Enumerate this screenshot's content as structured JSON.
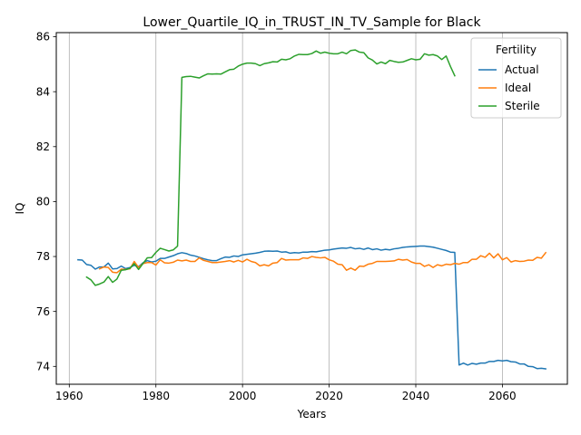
{
  "chart_data": {
    "type": "line",
    "title": "Lower_Quartile_IQ_in_TRUST_IN_TV_Sample for Black",
    "xlabel": "Years",
    "ylabel": "IQ",
    "xlim": [
      1957,
      2075
    ],
    "ylim": [
      73.35,
      86.15
    ],
    "xticks": [
      1960,
      1980,
      2000,
      2020,
      2040,
      2060
    ],
    "yticks": [
      74,
      76,
      78,
      80,
      82,
      84,
      86
    ],
    "grid": "vertical",
    "legend": {
      "title": "Fertility",
      "position": "top-right"
    },
    "series": [
      {
        "name": "Actual",
        "color": "#1f77b4",
        "x": [
          1962,
          1963,
          1964,
          1965,
          1966,
          1967,
          1968,
          1969,
          1970,
          1971,
          1972,
          1973,
          1974,
          1975,
          1976,
          1977,
          1978,
          1979,
          1980,
          1981,
          1982,
          1983,
          1984,
          1985,
          1986,
          1987,
          1988,
          1989,
          1990,
          1991,
          1992,
          1993,
          1994,
          1995,
          1996,
          1997,
          1998,
          1999,
          2000,
          2001,
          2002,
          2003,
          2004,
          2005,
          2006,
          2007,
          2008,
          2009,
          2010,
          2011,
          2012,
          2013,
          2014,
          2015,
          2016,
          2017,
          2018,
          2019,
          2020,
          2021,
          2022,
          2023,
          2024,
          2025,
          2026,
          2027,
          2028,
          2029,
          2030,
          2031,
          2032,
          2033,
          2034,
          2035,
          2036,
          2037,
          2038,
          2039,
          2040,
          2041,
          2042,
          2043,
          2044,
          2045,
          2046,
          2047,
          2048,
          2049,
          2050,
          2051,
          2052,
          2053,
          2054,
          2055,
          2056,
          2057,
          2058,
          2059,
          2060,
          2061,
          2062,
          2063,
          2064,
          2065,
          2066,
          2067,
          2068,
          2069,
          2070
        ],
        "y": [
          77.88,
          77.87,
          77.71,
          77.68,
          77.54,
          77.62,
          77.62,
          77.76,
          77.55,
          77.56,
          77.65,
          77.56,
          77.6,
          77.68,
          77.63,
          77.77,
          77.85,
          77.8,
          77.83,
          77.93,
          77.93,
          77.98,
          78.03,
          78.1,
          78.14,
          78.11,
          78.05,
          78.02,
          77.97,
          77.92,
          77.88,
          77.85,
          77.85,
          77.92,
          77.98,
          77.97,
          78.02,
          78.0,
          78.06,
          78.08,
          78.1,
          78.12,
          78.15,
          78.19,
          78.2,
          78.19,
          78.2,
          78.16,
          78.17,
          78.12,
          78.14,
          78.13,
          78.16,
          78.16,
          78.18,
          78.17,
          78.2,
          78.23,
          78.24,
          78.27,
          78.29,
          78.31,
          78.3,
          78.33,
          78.28,
          78.3,
          78.26,
          78.31,
          78.25,
          78.28,
          78.23,
          78.26,
          78.24,
          78.28,
          78.3,
          78.33,
          78.35,
          78.36,
          78.37,
          78.38,
          78.38,
          78.36,
          78.34,
          78.3,
          78.26,
          78.22,
          78.16,
          78.15,
          74.05,
          74.12,
          74.05,
          74.11,
          74.08,
          74.12,
          74.12,
          74.18,
          74.18,
          74.22,
          74.2,
          74.22,
          74.17,
          74.16,
          74.09,
          74.09,
          74.0,
          73.99,
          73.92,
          73.93,
          73.91
        ]
      },
      {
        "name": "Ideal",
        "color": "#ff7f0e",
        "x": [
          1967,
          1968,
          1969,
          1970,
          1971,
          1972,
          1973,
          1974,
          1975,
          1976,
          1977,
          1978,
          1979,
          1980,
          1981,
          1982,
          1983,
          1984,
          1985,
          1986,
          1987,
          1988,
          1989,
          1990,
          1991,
          1992,
          1993,
          1994,
          1995,
          1996,
          1997,
          1998,
          1999,
          2000,
          2001,
          2002,
          2003,
          2004,
          2005,
          2006,
          2007,
          2008,
          2009,
          2010,
          2011,
          2012,
          2013,
          2014,
          2015,
          2016,
          2017,
          2018,
          2019,
          2020,
          2021,
          2022,
          2023,
          2024,
          2025,
          2026,
          2027,
          2028,
          2029,
          2030,
          2031,
          2032,
          2033,
          2034,
          2035,
          2036,
          2037,
          2038,
          2039,
          2040,
          2041,
          2042,
          2043,
          2044,
          2045,
          2046,
          2047,
          2048,
          2049,
          2050,
          2051,
          2052,
          2053,
          2054,
          2055,
          2056,
          2057,
          2058,
          2059,
          2060,
          2061,
          2062,
          2063,
          2064,
          2065,
          2066,
          2067,
          2068,
          2069,
          2070
        ],
        "y": [
          77.55,
          77.62,
          77.6,
          77.43,
          77.41,
          77.54,
          77.53,
          77.55,
          77.82,
          77.6,
          77.74,
          77.78,
          77.78,
          77.69,
          77.88,
          77.77,
          77.76,
          77.79,
          77.87,
          77.84,
          77.87,
          77.82,
          77.82,
          77.95,
          77.86,
          77.82,
          77.78,
          77.78,
          77.8,
          77.82,
          77.85,
          77.8,
          77.86,
          77.8,
          77.9,
          77.82,
          77.78,
          77.66,
          77.7,
          77.66,
          77.76,
          77.78,
          77.93,
          77.87,
          77.88,
          77.88,
          77.88,
          77.95,
          77.93,
          78.0,
          77.97,
          77.95,
          77.97,
          77.88,
          77.83,
          77.72,
          77.7,
          77.5,
          77.58,
          77.5,
          77.65,
          77.64,
          77.72,
          77.75,
          77.82,
          77.82,
          77.82,
          77.83,
          77.84,
          77.9,
          77.87,
          77.89,
          77.8,
          77.75,
          77.75,
          77.64,
          77.7,
          77.6,
          77.7,
          77.66,
          77.72,
          77.7,
          77.75,
          77.72,
          77.78,
          77.78,
          77.9,
          77.9,
          78.03,
          77.97,
          78.12,
          77.95,
          78.1,
          77.88,
          77.96,
          77.8,
          77.85,
          77.82,
          77.83,
          77.87,
          77.86,
          77.97,
          77.94,
          78.14
        ]
      },
      {
        "name": "Sterile",
        "color": "#2ca02c",
        "x": [
          1964,
          1965,
          1966,
          1967,
          1968,
          1969,
          1970,
          1971,
          1972,
          1973,
          1974,
          1975,
          1976,
          1977,
          1978,
          1979,
          1980,
          1981,
          1982,
          1983,
          1984,
          1985,
          1986,
          1987,
          1988,
          1989,
          1990,
          1991,
          1992,
          1993,
          1994,
          1995,
          1996,
          1997,
          1998,
          1999,
          2000,
          2001,
          2002,
          2003,
          2004,
          2005,
          2006,
          2007,
          2008,
          2009,
          2010,
          2011,
          2012,
          2013,
          2014,
          2015,
          2016,
          2017,
          2018,
          2019,
          2020,
          2021,
          2022,
          2023,
          2024,
          2025,
          2026,
          2027,
          2028,
          2029,
          2030,
          2031,
          2032,
          2033,
          2034,
          2035,
          2036,
          2037,
          2038,
          2039,
          2040,
          2041,
          2042,
          2043,
          2044,
          2045,
          2046,
          2047,
          2048,
          2049
        ],
        "y": [
          77.25,
          77.15,
          76.95,
          77.0,
          77.07,
          77.27,
          77.06,
          77.18,
          77.5,
          77.52,
          77.57,
          77.74,
          77.53,
          77.74,
          77.95,
          77.96,
          78.15,
          78.3,
          78.25,
          78.2,
          78.24,
          78.38,
          84.52,
          84.55,
          84.56,
          84.53,
          84.5,
          84.58,
          84.65,
          84.64,
          84.65,
          84.64,
          84.72,
          84.8,
          84.82,
          84.93,
          85.0,
          85.04,
          85.04,
          85.02,
          84.95,
          85.02,
          85.05,
          85.09,
          85.08,
          85.18,
          85.16,
          85.2,
          85.3,
          85.36,
          85.35,
          85.35,
          85.39,
          85.48,
          85.4,
          85.44,
          85.4,
          85.38,
          85.38,
          85.44,
          85.38,
          85.5,
          85.52,
          85.44,
          85.42,
          85.23,
          85.15,
          85.01,
          85.08,
          85.02,
          85.14,
          85.1,
          85.07,
          85.08,
          85.14,
          85.2,
          85.16,
          85.18,
          85.38,
          85.33,
          85.35,
          85.3,
          85.17,
          85.3,
          84.92,
          84.58
        ]
      }
    ]
  }
}
